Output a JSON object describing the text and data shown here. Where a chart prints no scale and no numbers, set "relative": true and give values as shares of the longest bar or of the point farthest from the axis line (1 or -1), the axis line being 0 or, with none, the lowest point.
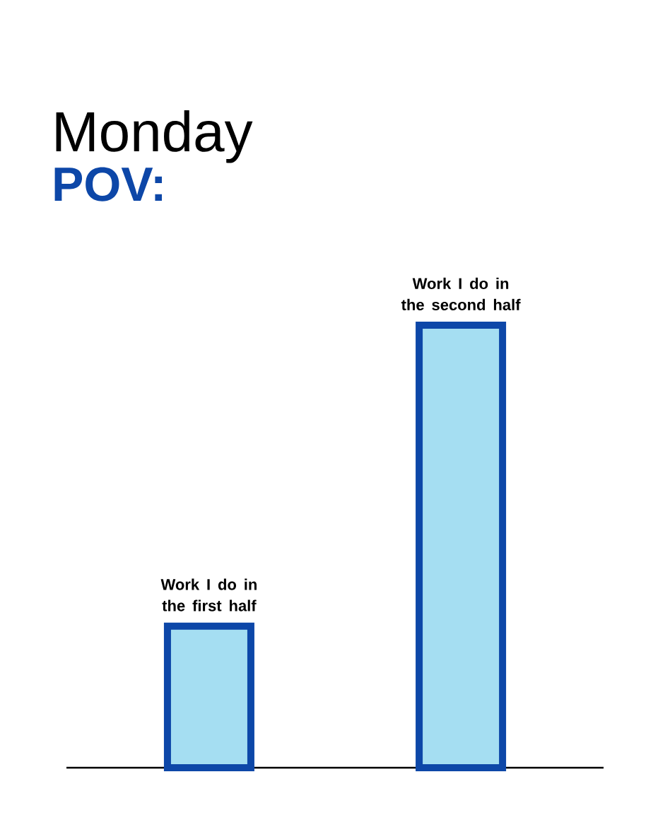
{
  "chart_data": {
    "type": "bar",
    "title": "Monday",
    "subtitle": "POV:",
    "categories": [
      "Work I do in the first half",
      "Work I do in the second half"
    ],
    "values": [
      0.32,
      1
    ],
    "color": "#a5def2",
    "relative": true
  }
}
